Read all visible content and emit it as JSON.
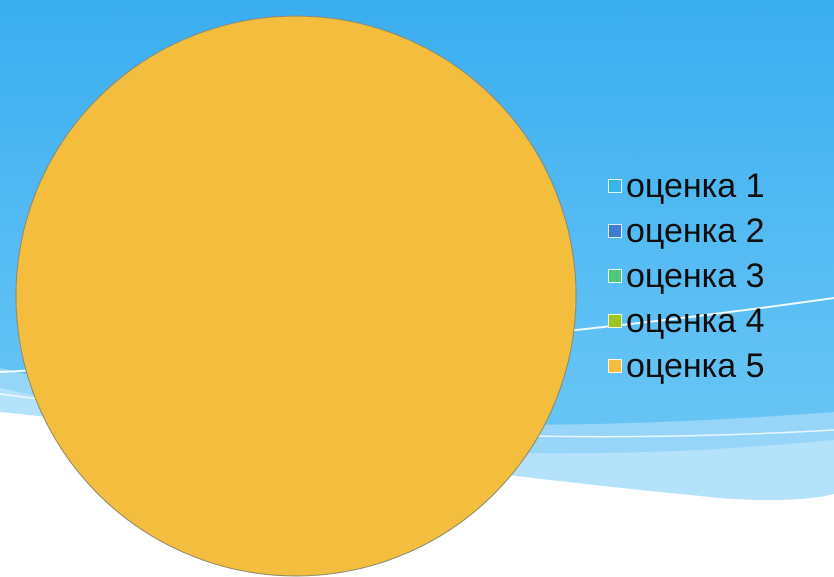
{
  "background": {
    "top_color": "#3aaef0",
    "mid_color": "#66c4f5",
    "light_color": "#bfe6fb",
    "white_color": "#ffffff"
  },
  "chart_data": {
    "type": "pie",
    "title": "",
    "categories": [
      "оценка 1",
      "оценка 2",
      "оценка 3",
      "оценка 4",
      "оценка 5"
    ],
    "values": [
      0,
      0,
      0,
      0,
      100
    ],
    "colors": [
      "#38b4ea",
      "#3f7bd1",
      "#4fc77a",
      "#9cc520",
      "#f3bd3d"
    ],
    "legend_position": "right",
    "outline_color": "#8a8a74"
  }
}
